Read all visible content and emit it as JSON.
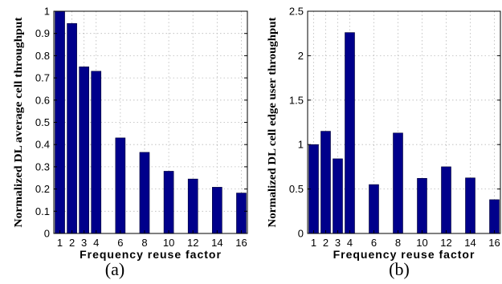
{
  "chart_data": [
    {
      "type": "bar",
      "caption": "(a)",
      "ylabel": "Normalized DL average cell throughput",
      "xlabel": "Frequency reuse factor",
      "x": [
        1,
        2,
        3,
        4,
        6,
        8,
        10,
        12,
        14,
        16
      ],
      "values": [
        1.0,
        0.945,
        0.75,
        0.73,
        0.43,
        0.365,
        0.28,
        0.245,
        0.208,
        0.182
      ],
      "xticks": [
        "1",
        "2",
        "3",
        "4",
        "6",
        "8",
        "10",
        "12",
        "14",
        "16"
      ],
      "yticks": [
        "0",
        "0.1",
        "0.2",
        "0.3",
        "0.4",
        "0.5",
        "0.6",
        "0.7",
        "0.8",
        "0.9",
        "1"
      ],
      "ylim": [
        0,
        1
      ],
      "xlim": [
        0.5,
        16.5
      ],
      "grid": true,
      "bar_color": "#00008b"
    },
    {
      "type": "bar",
      "caption": "(b)",
      "ylabel": "Normalized DL cell edge user throughput",
      "xlabel": "Frequency reuse factor",
      "x": [
        1,
        2,
        3,
        4,
        6,
        8,
        10,
        12,
        14,
        16
      ],
      "values": [
        1.0,
        1.15,
        0.84,
        2.26,
        0.55,
        1.13,
        0.62,
        0.75,
        0.625,
        0.38
      ],
      "xticks": [
        "1",
        "2",
        "3",
        "4",
        "6",
        "8",
        "10",
        "12",
        "14",
        "16"
      ],
      "yticks": [
        "0",
        "0.5",
        "1",
        "1.5",
        "2",
        "2.5"
      ],
      "ylim": [
        0,
        2.5
      ],
      "xlim": [
        0.5,
        16.5
      ],
      "grid": true,
      "bar_color": "#00008b"
    }
  ]
}
